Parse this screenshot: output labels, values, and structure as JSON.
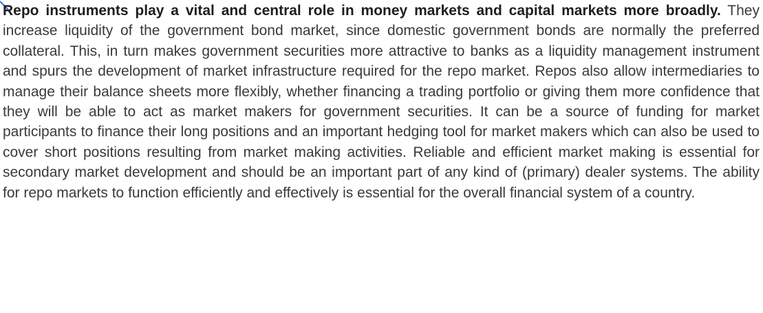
{
  "paragraph": {
    "lead": "Repo instruments play a vital and central role in money markets and capital markets more broadly.",
    "body": "They increase liquidity of the government bond market, since domestic government bonds are normally the preferred collateral. This, in turn makes government securities more attractive to banks as a liquidity management instrument and spurs the development of market infrastructure required for the repo market. Repos also allow intermediaries to manage their balance sheets more flexibly, whether financing a trading portfolio or giving them more confidence that they will be able to act as market makers for government securities. It can be a source of funding for market participants to finance their long positions and an important hedging tool for market makers which can also be used to cover short positions resulting from market making activities. Reliable and efficient market making is essential for secondary market development and should be an important part of any kind of (primary) dealer systems. The ability for repo markets to function efficiently and effectively is essential for the overall financial system of a country."
  }
}
